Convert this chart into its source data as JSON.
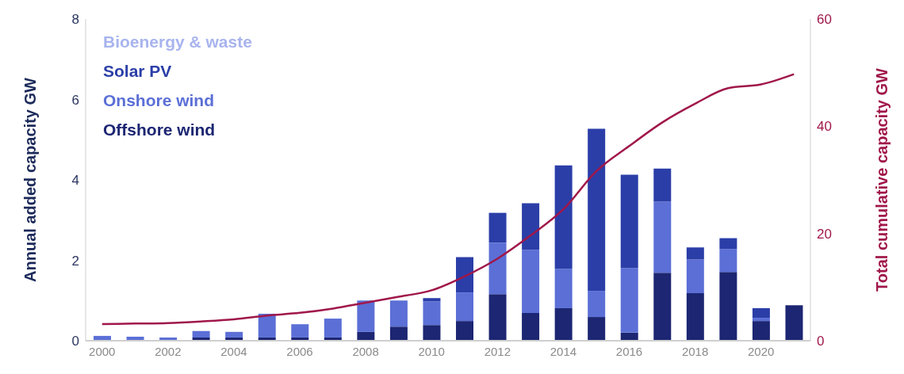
{
  "chart_data": {
    "type": "bar",
    "stacked": true,
    "xlabel": null,
    "ylabel": "Annual added capacity GW",
    "y2label": "Total cumulative capacity GW",
    "categories": [
      "2000",
      null,
      "2002",
      null,
      "2004",
      null,
      "2006",
      null,
      "2008",
      null,
      "2010",
      null,
      "2012",
      null,
      "2014",
      null,
      "2016",
      null,
      "2018",
      null,
      "2020",
      null
    ],
    "series": [
      {
        "name": "Offshore wind",
        "color": "#1c2672",
        "values": [
          0,
          0,
          0,
          0.08,
          0.08,
          0.08,
          0.08,
          0.08,
          0.22,
          0.35,
          0.39,
          0.49,
          1.16,
          0.69,
          0.81,
          0.59,
          0.2,
          1.69,
          1.18,
          1.71,
          0.49,
          0.88
        ]
      },
      {
        "name": "Onshore wind",
        "color": "#5b6fd6",
        "values": [
          0.12,
          0.1,
          0.08,
          0.16,
          0.14,
          0.59,
          0.33,
          0.47,
          0.78,
          0.65,
          0.59,
          0.71,
          1.28,
          1.57,
          0.98,
          0.65,
          1.61,
          1.77,
          0.84,
          0.57,
          0.08,
          0
        ]
      },
      {
        "name": "Solar PV",
        "color": "#2b3ea8",
        "values": [
          0,
          0,
          0,
          0,
          0,
          0,
          0,
          0,
          0,
          0,
          0.08,
          0.88,
          0.74,
          1.16,
          2.57,
          4.03,
          2.32,
          0.82,
          0.3,
          0.27,
          0.24,
          0
        ]
      },
      {
        "name": "Bioenergy & waste",
        "color": "#a8b4ee",
        "values": [
          0,
          0,
          0,
          0,
          0,
          0,
          0,
          0,
          0,
          0,
          0,
          0,
          0,
          0,
          0,
          0,
          0,
          0,
          0,
          0,
          0,
          0
        ]
      },
      {
        "type": "line",
        "axis": "y2",
        "color": "#a0174a",
        "values": [
          3.1,
          3.2,
          3.3,
          3.6,
          4.0,
          4.7,
          5.2,
          6.0,
          7.1,
          8.2,
          9.4,
          12.0,
          15.3,
          19.6,
          24.5,
          31.6,
          36.3,
          40.7,
          44.2,
          47.1,
          47.8,
          49.7
        ]
      }
    ],
    "ylim": [
      0,
      8
    ],
    "yticks": [
      0,
      2,
      4,
      6,
      8
    ],
    "y2lim": [
      0,
      60
    ],
    "y2ticks": [
      0,
      20,
      40,
      60
    ],
    "grid": false,
    "legend": "top left",
    "marker": "none",
    "line_style": "solid"
  }
}
